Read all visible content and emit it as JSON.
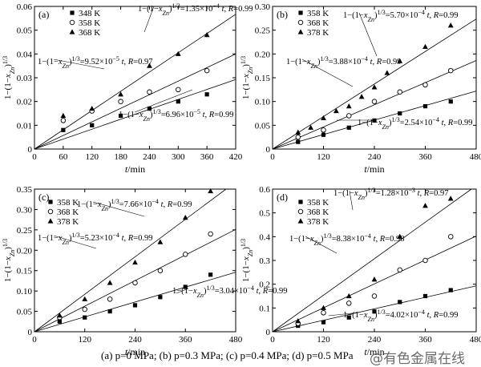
{
  "chart_data": [
    {
      "type": "scatter",
      "panel_label": "(a)",
      "xlabel": "t/min",
      "ylabel": "1−(1−x_Zn)^1/3",
      "xlim": [
        0,
        420
      ],
      "ylim": [
        0,
        0.06
      ],
      "xticks": [
        0,
        60,
        120,
        180,
        240,
        300,
        360,
        420
      ],
      "yticks": [
        0,
        0.01,
        0.02,
        0.03,
        0.04,
        0.05,
        0.06
      ],
      "ytick_labels": [
        "0",
        "0.01",
        "0.02",
        "0.03",
        "0.04",
        "0.05",
        "0.06"
      ],
      "legend": "top-left",
      "series": [
        {
          "name": "348 K",
          "marker": "square",
          "x": [
            60,
            120,
            180,
            240,
            300,
            360
          ],
          "y": [
            0.008,
            0.01,
            0.014,
            0.017,
            0.02,
            0.023
          ],
          "fit_slope": 6.96e-05,
          "fit_label": "1−(1−x_Zn)^1/3=6.96×10^−5 t, R=0.99"
        },
        {
          "name": "358 K",
          "marker": "circle",
          "x": [
            60,
            120,
            180,
            240,
            300,
            360
          ],
          "y": [
            0.012,
            0.016,
            0.02,
            0.024,
            0.025,
            0.033
          ],
          "fit_slope": 9.52e-05,
          "fit_label": "1−(1−x_Zn)^1/3=9.52×10^−5 t, R=0.97"
        },
        {
          "name": "368 K",
          "marker": "triangle",
          "x": [
            60,
            120,
            180,
            240,
            300,
            360
          ],
          "y": [
            0.014,
            0.017,
            0.023,
            0.035,
            0.04,
            0.048
          ],
          "fit_slope": 0.000135,
          "fit_label": "1−(1−x_Zn)^1/3=1.35×10^−4 t, R=0.99"
        }
      ]
    },
    {
      "type": "scatter",
      "panel_label": "(b)",
      "xlabel": "t/min",
      "ylabel": "1−(1−x_Zn)^1/3",
      "xlim": [
        0,
        480
      ],
      "ylim": [
        0,
        0.3
      ],
      "xticks": [
        0,
        120,
        240,
        360,
        480
      ],
      "yticks": [
        0,
        0.05,
        0.1,
        0.15,
        0.2,
        0.25,
        0.3
      ],
      "ytick_labels": [
        "0",
        "0.05",
        "0.10",
        "0.15",
        "0.20",
        "0.25",
        "0.30"
      ],
      "legend": "top-left",
      "series": [
        {
          "name": "358 K",
          "marker": "square",
          "x": [
            60,
            120,
            180,
            240,
            300,
            360,
            420
          ],
          "y": [
            0.015,
            0.03,
            0.045,
            0.06,
            0.075,
            0.09,
            0.1
          ],
          "fit_slope": 0.000254,
          "fit_label": "1−(1−x_Zn)^1/3=2.54×10^−4 t, R=0.99"
        },
        {
          "name": "368 K",
          "marker": "circle",
          "x": [
            60,
            120,
            180,
            240,
            300,
            360,
            420
          ],
          "y": [
            0.025,
            0.04,
            0.07,
            0.1,
            0.12,
            0.135,
            0.165
          ],
          "fit_slope": 0.000388,
          "fit_label": "1−(1−x_Zn)^1/3=3.88×10^−4 t, R=0.99"
        },
        {
          "name": "378 K",
          "marker": "triangle",
          "x": [
            60,
            90,
            120,
            150,
            180,
            210,
            240,
            270,
            300,
            360,
            420
          ],
          "y": [
            0.035,
            0.045,
            0.065,
            0.08,
            0.09,
            0.11,
            0.13,
            0.16,
            0.185,
            0.215,
            0.26
          ],
          "fit_slope": 0.00057,
          "fit_label": "1−(1−x_Zn)^1/3=5.70×10^−4 t, R=0.99"
        }
      ]
    },
    {
      "type": "scatter",
      "panel_label": "(c)",
      "xlabel": "t/min",
      "ylabel": "1−(1−x_Zn)^1/3",
      "xlim": [
        0,
        480
      ],
      "ylim": [
        0,
        0.35
      ],
      "xticks": [
        0,
        120,
        240,
        360,
        480
      ],
      "yticks": [
        0,
        0.05,
        0.1,
        0.15,
        0.2,
        0.25,
        0.3,
        0.35
      ],
      "ytick_labels": [
        "0",
        "0.05",
        "0.10",
        "0.15",
        "0.20",
        "0.25",
        "0.30",
        "0.35"
      ],
      "legend": "top-left",
      "series": [
        {
          "name": "358 K",
          "marker": "square",
          "x": [
            60,
            120,
            180,
            240,
            300,
            360,
            420
          ],
          "y": [
            0.025,
            0.035,
            0.05,
            0.065,
            0.085,
            0.11,
            0.14
          ],
          "fit_slope": 0.000304,
          "fit_label": "1−(1−x_Zn)^1/3=3.04×10^−4 t, R=0.99"
        },
        {
          "name": "368 K",
          "marker": "circle",
          "x": [
            60,
            120,
            180,
            240,
            300,
            360,
            420
          ],
          "y": [
            0.035,
            0.055,
            0.08,
            0.12,
            0.15,
            0.19,
            0.24
          ],
          "fit_slope": 0.000523,
          "fit_label": "1−(1−x_Zn)^1/3=5.23×10^−4 t, R=0.99"
        },
        {
          "name": "378 K",
          "marker": "triangle",
          "x": [
            60,
            120,
            180,
            240,
            300,
            360,
            420
          ],
          "y": [
            0.04,
            0.08,
            0.12,
            0.17,
            0.22,
            0.28,
            0.345
          ],
          "fit_slope": 0.000766,
          "fit_label": "1−(1−x_Zn)^1/3=7.66×10^−4 t, R=0.99"
        }
      ]
    },
    {
      "type": "scatter",
      "panel_label": "(d)",
      "xlabel": "t/min",
      "ylabel": "1−(1−x_Zn)^1/3",
      "xlim": [
        0,
        480
      ],
      "ylim": [
        0,
        0.6
      ],
      "xticks": [
        0,
        120,
        240,
        360,
        480
      ],
      "yticks": [
        0,
        0.1,
        0.2,
        0.3,
        0.4,
        0.5,
        0.6
      ],
      "ytick_labels": [
        "0",
        "0.1",
        "0.2",
        "0.3",
        "0.4",
        "0.5",
        "0.6"
      ],
      "legend": "top-left",
      "series": [
        {
          "name": "358 K",
          "marker": "square",
          "x": [
            60,
            120,
            180,
            240,
            300,
            360,
            420
          ],
          "y": [
            0.025,
            0.04,
            0.06,
            0.085,
            0.125,
            0.15,
            0.175
          ],
          "fit_slope": 0.000402,
          "fit_label": "1−(1−x_Zn)^1/3=4.02×10^−4 t, R=0.99"
        },
        {
          "name": "368 K",
          "marker": "circle",
          "x": [
            60,
            120,
            180,
            240,
            300,
            360,
            420
          ],
          "y": [
            0.035,
            0.08,
            0.12,
            0.15,
            0.26,
            0.3,
            0.4
          ],
          "fit_slope": 0.000838,
          "fit_label": "1−(1−x_Zn)^1/3=8.38×10^−4 t, R=0.98"
        },
        {
          "name": "378 K",
          "marker": "triangle",
          "x": [
            60,
            120,
            180,
            240,
            300,
            360,
            420
          ],
          "y": [
            0.045,
            0.1,
            0.15,
            0.22,
            0.4,
            0.53,
            0.56
          ],
          "fit_slope": 0.00128,
          "fit_label": "1−(1−x_Zn)^1/3=1.28×10^−3 t, R=0.97"
        }
      ]
    }
  ],
  "caption": "(a) p=0 MPa; (b) p=0.3 MPa; (c) p=0.4 MPa; (d) p=0.5 MPa",
  "watermark": "@有色金属在线"
}
